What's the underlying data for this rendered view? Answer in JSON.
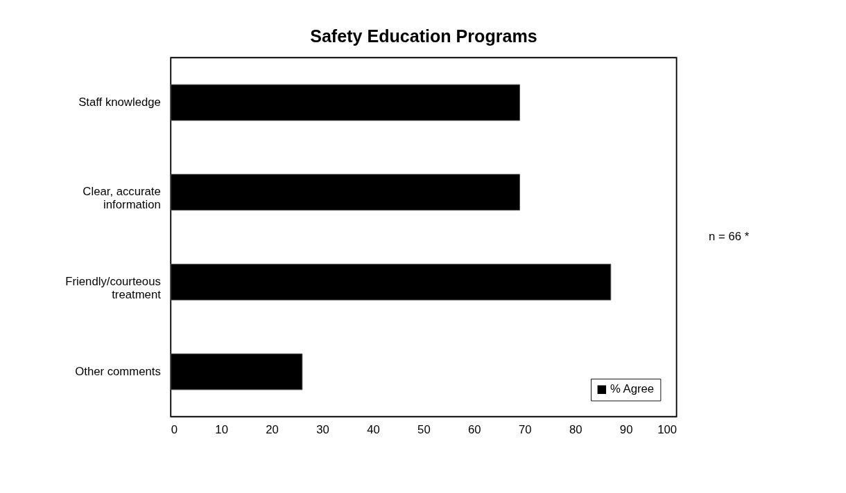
{
  "chart_data": {
    "type": "bar",
    "orientation": "horizontal",
    "title": "Safety Education Programs",
    "categories": [
      "Staff knowledge",
      "Clear, accurate information",
      "Friendly/courteous treatment",
      "Other comments"
    ],
    "series": [
      {
        "name": "% Agree",
        "color": "#000000",
        "values": [
          69,
          69,
          87,
          26
        ]
      }
    ],
    "xlim": [
      0,
      100
    ],
    "xticks": [
      0,
      10,
      20,
      30,
      40,
      50,
      60,
      70,
      80,
      90,
      100
    ],
    "grid": false,
    "legend": "bottom right",
    "annotations": [
      "n = 66 *"
    ]
  }
}
